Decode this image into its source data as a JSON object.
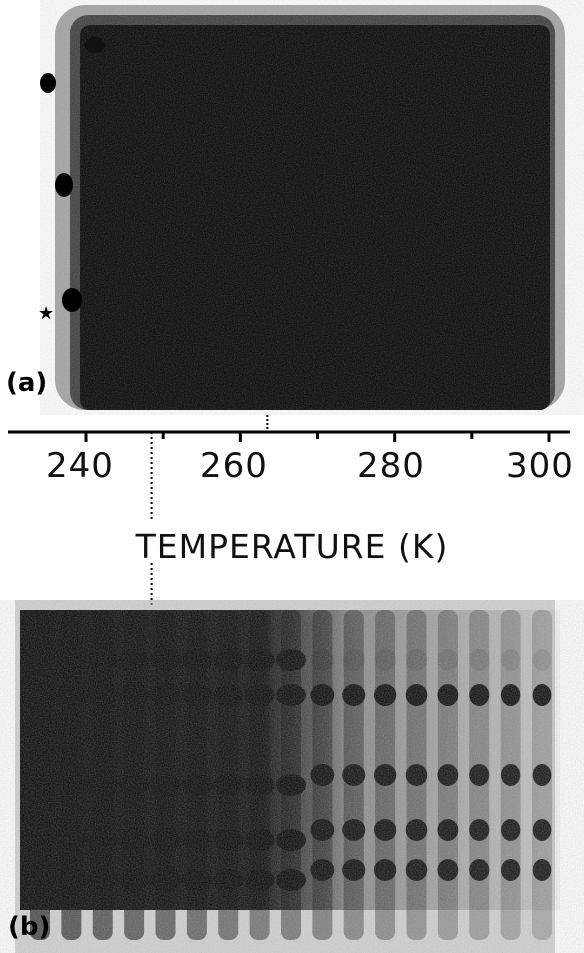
{
  "figure": {
    "panel_a_label": "(a)",
    "panel_b_label": "(b)",
    "marker_symbol": "★"
  },
  "axis": {
    "title": "TEMPERATURE (K)",
    "tick_labels": [
      "240",
      "260",
      "280",
      "300"
    ],
    "range": [
      230,
      305
    ],
    "major_ticks": [
      240,
      260,
      280,
      300
    ],
    "minor_ticks": [
      250,
      270,
      290
    ],
    "marked_temperatures": [
      248.5,
      263.5
    ]
  },
  "gel_b": {
    "lanes": 17,
    "bands_right": 4
  },
  "colors": {
    "ink": "#000000",
    "paper": "#ffffff"
  }
}
